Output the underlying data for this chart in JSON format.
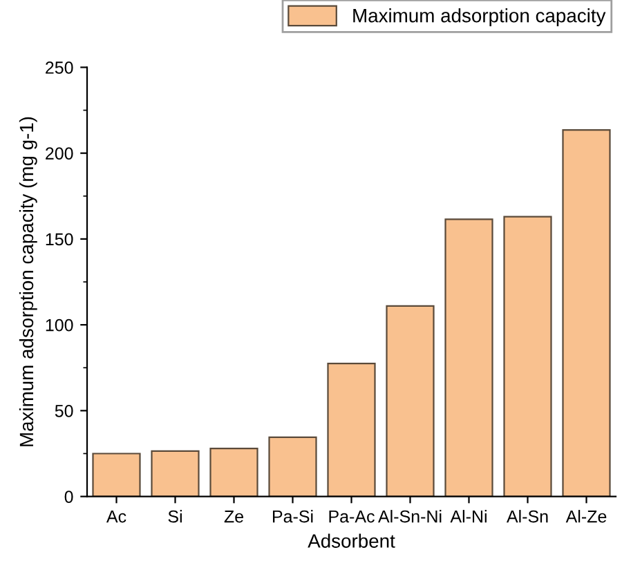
{
  "chart_data": {
    "type": "bar",
    "xlabel": "Adsorbent",
    "ylabel": "Maximum adsorption capacity (mg g-1)",
    "categories": [
      "Ac",
      "Si",
      "Ze",
      "Pa-Si",
      "Pa-Ac",
      "Al-Sn-Ni",
      "Al-Ni",
      "Al-Sn",
      "Al-Ze"
    ],
    "series": [
      {
        "name": "Maximum adsorption capacity",
        "color": "#f9c18f",
        "values": [
          25,
          26.5,
          28,
          34.5,
          77.5,
          111,
          161.5,
          163,
          213.5
        ]
      }
    ],
    "ylim": [
      0,
      250
    ],
    "yticks": [
      0,
      50,
      100,
      150,
      200,
      250
    ],
    "grid": false,
    "legend": "top right"
  }
}
